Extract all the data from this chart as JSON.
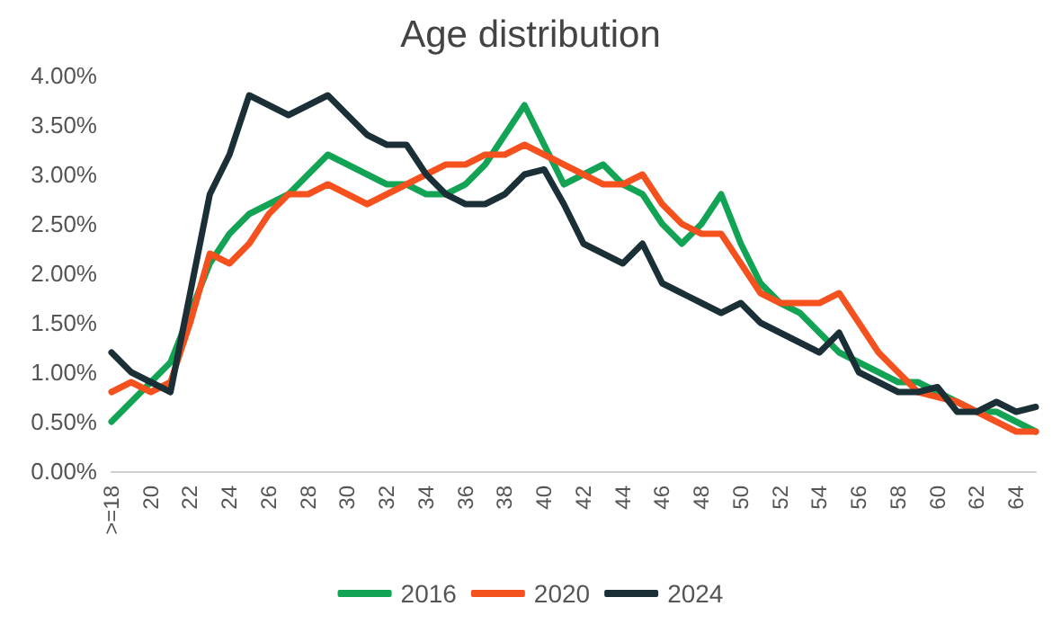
{
  "chart_data": {
    "type": "line",
    "title": "Age distribution",
    "categories": [
      ">=18",
      null,
      "20",
      null,
      "22",
      null,
      "24",
      null,
      "26",
      null,
      "28",
      null,
      "30",
      null,
      "32",
      null,
      "34",
      null,
      "36",
      null,
      "38",
      null,
      "40",
      null,
      "42",
      null,
      "44",
      null,
      "46",
      null,
      "48",
      null,
      "50",
      null,
      "52",
      null,
      "54",
      null,
      "56",
      null,
      "58",
      null,
      "60",
      null,
      "62",
      null,
      "64",
      null
    ],
    "series": [
      {
        "name": "2016",
        "color": "#12a454",
        "values": [
          0.5,
          0.7,
          0.9,
          1.1,
          1.6,
          2.1,
          2.4,
          2.6,
          2.7,
          2.8,
          3.0,
          3.2,
          3.1,
          3.0,
          2.9,
          2.9,
          2.8,
          2.8,
          2.9,
          3.1,
          3.4,
          3.7,
          3.3,
          2.9,
          3.0,
          3.1,
          2.9,
          2.8,
          2.5,
          2.3,
          2.5,
          2.8,
          2.3,
          1.9,
          1.7,
          1.6,
          1.4,
          1.2,
          1.1,
          1.0,
          0.9,
          0.9,
          0.8,
          0.7,
          0.6,
          0.6,
          0.5,
          0.4
        ]
      },
      {
        "name": "2020",
        "color": "#f4511e",
        "values": [
          0.8,
          0.9,
          0.8,
          0.9,
          1.5,
          2.2,
          2.1,
          2.3,
          2.6,
          2.8,
          2.8,
          2.9,
          2.8,
          2.7,
          2.8,
          2.9,
          3.0,
          3.1,
          3.1,
          3.2,
          3.2,
          3.3,
          3.2,
          3.1,
          3.0,
          2.9,
          2.9,
          3.0,
          2.7,
          2.5,
          2.4,
          2.4,
          2.1,
          1.8,
          1.7,
          1.7,
          1.7,
          1.8,
          1.5,
          1.2,
          1.0,
          0.8,
          0.75,
          0.7,
          0.6,
          0.5,
          0.4,
          0.4
        ]
      },
      {
        "name": "2024",
        "color": "#1b2f36",
        "values": [
          1.2,
          1.0,
          0.9,
          0.8,
          1.8,
          2.8,
          3.2,
          3.8,
          3.7,
          3.6,
          3.7,
          3.8,
          3.6,
          3.4,
          3.3,
          3.3,
          3.0,
          2.8,
          2.7,
          2.7,
          2.8,
          3.0,
          3.05,
          2.7,
          2.3,
          2.2,
          2.1,
          2.3,
          1.9,
          1.8,
          1.7,
          1.6,
          1.7,
          1.5,
          1.4,
          1.3,
          1.2,
          1.4,
          1.0,
          0.9,
          0.8,
          0.8,
          0.85,
          0.6,
          0.6,
          0.7,
          0.6,
          0.65
        ]
      }
    ],
    "ylim": [
      0,
      4
    ],
    "yticks": [
      {
        "value": 0,
        "label": "0.00%"
      },
      {
        "value": 0.5,
        "label": "0.50%"
      },
      {
        "value": 1,
        "label": "1.00%"
      },
      {
        "value": 1.5,
        "label": "1.50%"
      },
      {
        "value": 2,
        "label": "2.00%"
      },
      {
        "value": 2.5,
        "label": "2.50%"
      },
      {
        "value": 3,
        "label": "3.00%"
      },
      {
        "value": 3.5,
        "label": "3.50%"
      },
      {
        "value": 4,
        "label": "4.00%"
      }
    ],
    "grid": false,
    "legend": "bottom",
    "marker": "none",
    "line_style": "solid"
  }
}
